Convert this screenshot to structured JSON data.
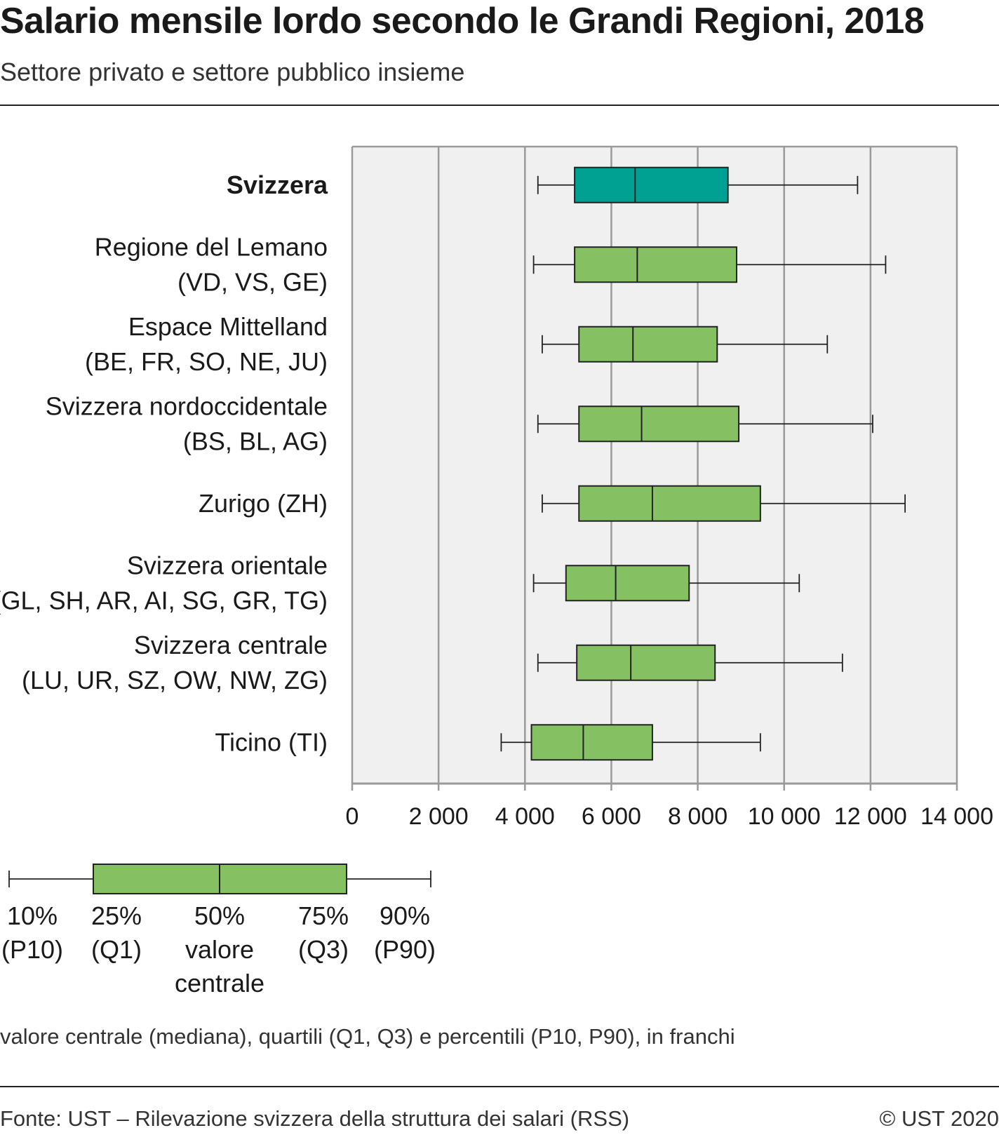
{
  "header": {
    "title": "Salario mensile lordo secondo le Grandi Regioni, 2018",
    "subtitle": "Settore privato e settore pubblico insieme"
  },
  "colors": {
    "highlight_box": "#00a092",
    "region_box": "#85c062",
    "plot_background": "#f0f0f0",
    "grid": "#9a9a9a"
  },
  "chart_data": {
    "type": "boxplot",
    "title": "Salario mensile lordo secondo le Grandi Regioni, 2018",
    "subtitle": "Settore privato e settore pubblico insieme",
    "orientation": "horizontal",
    "xlim": [
      0,
      14000
    ],
    "xticks": [
      0,
      2000,
      4000,
      6000,
      8000,
      10000,
      12000,
      14000
    ],
    "xtick_labels": [
      "0",
      "2 000",
      "4 000",
      "6 000",
      "8 000",
      "10 000",
      "12 000",
      "14 000"
    ],
    "grid": "vertical",
    "categories": [
      {
        "label_lines": [
          "Svizzera"
        ],
        "highlight": true,
        "p10": 4300,
        "q1": 5150,
        "median": 6550,
        "q3": 8700,
        "p90": 11700
      },
      {
        "label_lines": [
          "Regione del Lemano",
          "(VD, VS, GE)"
        ],
        "highlight": false,
        "p10": 4200,
        "q1": 5150,
        "median": 6600,
        "q3": 8900,
        "p90": 12350
      },
      {
        "label_lines": [
          "Espace Mittelland",
          "(BE, FR, SO, NE, JU)"
        ],
        "highlight": false,
        "p10": 4400,
        "q1": 5250,
        "median": 6500,
        "q3": 8450,
        "p90": 11000
      },
      {
        "label_lines": [
          "Svizzera nordoccidentale",
          "(BS, BL, AG)"
        ],
        "highlight": false,
        "p10": 4300,
        "q1": 5250,
        "median": 6700,
        "q3": 8950,
        "p90": 12050
      },
      {
        "label_lines": [
          "Zurigo (ZH)"
        ],
        "highlight": false,
        "p10": 4400,
        "q1": 5250,
        "median": 6950,
        "q3": 9450,
        "p90": 12800
      },
      {
        "label_lines": [
          "Svizzera orientale",
          "(GL, SH, AR, AI, SG, GR, TG)"
        ],
        "highlight": false,
        "p10": 4200,
        "q1": 4950,
        "median": 6100,
        "q3": 7800,
        "p90": 10350
      },
      {
        "label_lines": [
          "Svizzera centrale",
          "(LU, UR, SZ, OW, NW, ZG)"
        ],
        "highlight": false,
        "p10": 4300,
        "q1": 5200,
        "median": 6450,
        "q3": 8400,
        "p90": 11350
      },
      {
        "label_lines": [
          "Ticino (TI)"
        ],
        "highlight": false,
        "p10": 3450,
        "q1": 4150,
        "median": 5350,
        "q3": 6950,
        "p90": 9450
      }
    ]
  },
  "legend": {
    "items": [
      {
        "lines": [
          "10%",
          "(P10)"
        ]
      },
      {
        "lines": [
          "25%",
          "(Q1)"
        ]
      },
      {
        "lines": [
          "50%",
          "valore",
          "centrale"
        ]
      },
      {
        "lines": [
          "75%",
          "(Q3)"
        ]
      },
      {
        "lines": [
          "90%",
          "(P90)"
        ]
      }
    ]
  },
  "footer": {
    "note": "valore centrale (mediana), quartili (Q1, Q3) e percentili (P10, P90), in franchi",
    "source": "Fonte: UST – Rilevazione svizzera della struttura dei salari (RSS)",
    "copyright": "© UST 2020"
  }
}
